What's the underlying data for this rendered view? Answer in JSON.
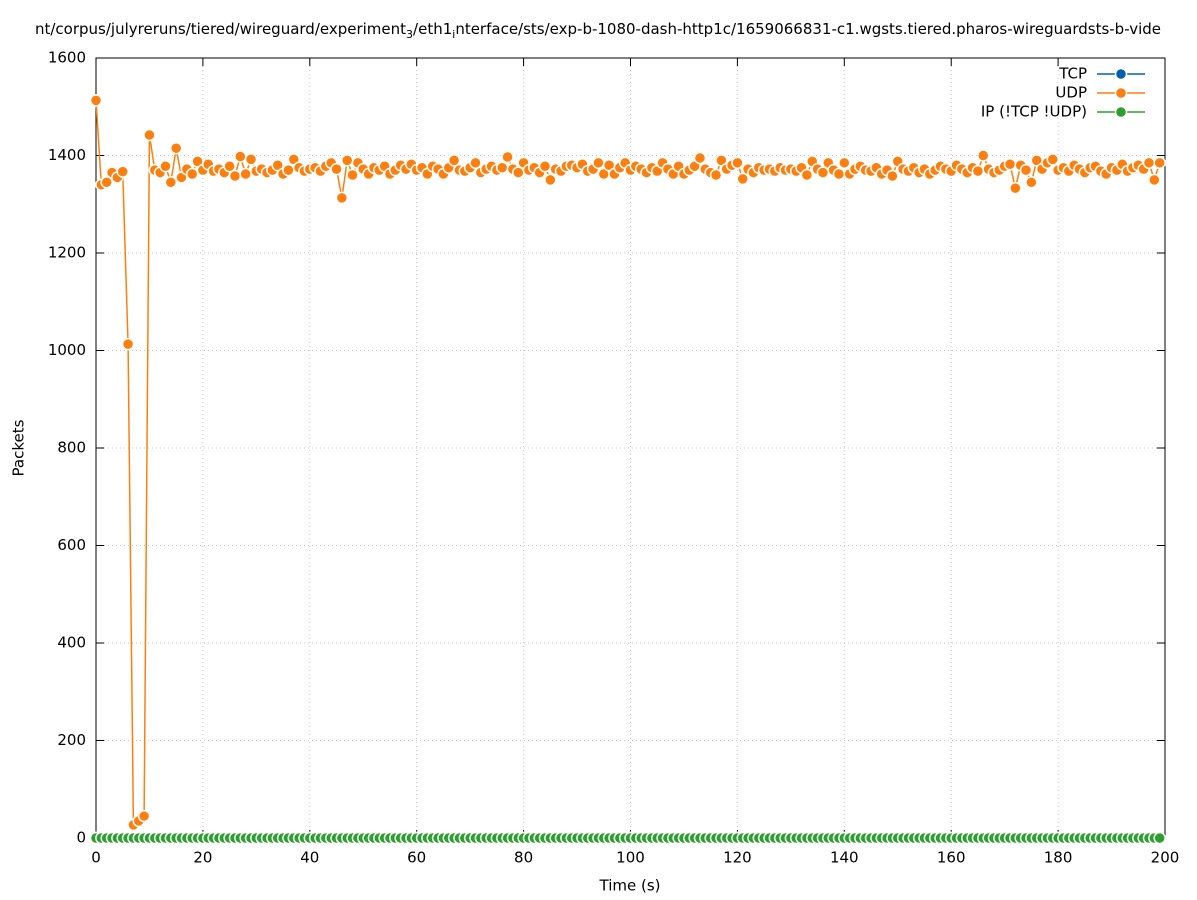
{
  "chart_data": {
    "type": "line",
    "title": [
      "nt/corpus/julyreruns/tiered/wireguard/experiment",
      "3",
      "/eth1",
      "i",
      "nterface/sts/exp-b-1080-dash-http1c/1659066831-c1.wgsts.tiered.pharos-wireguardsts-b-vide"
    ],
    "xlabel": "Time (s)",
    "ylabel": "Packets",
    "xlim": [
      0,
      200
    ],
    "ylim": [
      0,
      1600
    ],
    "xticks": [
      0,
      20,
      40,
      60,
      80,
      100,
      120,
      140,
      160,
      180,
      200
    ],
    "yticks": [
      0,
      200,
      400,
      600,
      800,
      1000,
      1200,
      1400,
      1600
    ],
    "grid": true,
    "legend": "top-right",
    "x": [
      0,
      1,
      2,
      3,
      4,
      5,
      6,
      7,
      8,
      9,
      10,
      11,
      12,
      13,
      14,
      15,
      16,
      17,
      18,
      19,
      20,
      21,
      22,
      23,
      24,
      25,
      26,
      27,
      28,
      29,
      30,
      31,
      32,
      33,
      34,
      35,
      36,
      37,
      38,
      39,
      40,
      41,
      42,
      43,
      44,
      45,
      46,
      47,
      48,
      49,
      50,
      51,
      52,
      53,
      54,
      55,
      56,
      57,
      58,
      59,
      60,
      61,
      62,
      63,
      64,
      65,
      66,
      67,
      68,
      69,
      70,
      71,
      72,
      73,
      74,
      75,
      76,
      77,
      78,
      79,
      80,
      81,
      82,
      83,
      84,
      85,
      86,
      87,
      88,
      89,
      90,
      91,
      92,
      93,
      94,
      95,
      96,
      97,
      98,
      99,
      100,
      101,
      102,
      103,
      104,
      105,
      106,
      107,
      108,
      109,
      110,
      111,
      112,
      113,
      114,
      115,
      116,
      117,
      118,
      119,
      120,
      121,
      122,
      123,
      124,
      125,
      126,
      127,
      128,
      129,
      130,
      131,
      132,
      133,
      134,
      135,
      136,
      137,
      138,
      139,
      140,
      141,
      142,
      143,
      144,
      145,
      146,
      147,
      148,
      149,
      150,
      151,
      152,
      153,
      154,
      155,
      156,
      157,
      158,
      159,
      160,
      161,
      162,
      163,
      164,
      165,
      166,
      167,
      168,
      169,
      170,
      171,
      172,
      173,
      174,
      175,
      176,
      177,
      178,
      179,
      180,
      181,
      182,
      183,
      184,
      185,
      186,
      187,
      188,
      189,
      190,
      191,
      192,
      193,
      194,
      195,
      196,
      197,
      198,
      199
    ],
    "series": [
      {
        "name": "TCP",
        "color": "#0060ad",
        "values": [
          0,
          0,
          0,
          0,
          0,
          0,
          0,
          0,
          0,
          0,
          0,
          0,
          0,
          0,
          0,
          0,
          0,
          0,
          0,
          0,
          0,
          0,
          0,
          0,
          0,
          0,
          0,
          0,
          0,
          0,
          0,
          0,
          0,
          0,
          0,
          0,
          0,
          0,
          0,
          0,
          0,
          0,
          0,
          0,
          0,
          0,
          0,
          0,
          0,
          0,
          0,
          0,
          0,
          0,
          0,
          0,
          0,
          0,
          0,
          0,
          0,
          0,
          0,
          0,
          0,
          0,
          0,
          0,
          0,
          0,
          0,
          0,
          0,
          0,
          0,
          0,
          0,
          0,
          0,
          0,
          0,
          0,
          0,
          0,
          0,
          0,
          0,
          0,
          0,
          0,
          0,
          0,
          0,
          0,
          0,
          0,
          0,
          0,
          0,
          0,
          0,
          0,
          0,
          0,
          0,
          0,
          0,
          0,
          0,
          0,
          0,
          0,
          0,
          0,
          0,
          0,
          0,
          0,
          0,
          0,
          0,
          0,
          0,
          0,
          0,
          0,
          0,
          0,
          0,
          0,
          0,
          0,
          0,
          0,
          0,
          0,
          0,
          0,
          0,
          0,
          0,
          0,
          0,
          0,
          0,
          0,
          0,
          0,
          0,
          0,
          0,
          0,
          0,
          0,
          0,
          0,
          0,
          0,
          0,
          0,
          0,
          0,
          0,
          0,
          0,
          0,
          0,
          0,
          0,
          0,
          0,
          0,
          0,
          0,
          0,
          0,
          0,
          0,
          0,
          0,
          0,
          0,
          0,
          0,
          0,
          0,
          0,
          0,
          0,
          0,
          0,
          0,
          0,
          0,
          0,
          0,
          0,
          0,
          0,
          0
        ]
      },
      {
        "name": "UDP",
        "color": "#ff7f0e",
        "values": [
          1513,
          1340,
          1345,
          1365,
          1355,
          1367,
          1013,
          27,
          35,
          45,
          1442,
          1370,
          1365,
          1378,
          1345,
          1415,
          1355,
          1372,
          1362,
          1388,
          1370,
          1382,
          1368,
          1372,
          1365,
          1378,
          1358,
          1398,
          1362,
          1392,
          1368,
          1372,
          1365,
          1370,
          1380,
          1362,
          1370,
          1392,
          1375,
          1368,
          1372,
          1375,
          1368,
          1378,
          1385,
          1372,
          1313,
          1390,
          1360,
          1385,
          1372,
          1362,
          1375,
          1370,
          1378,
          1362,
          1370,
          1380,
          1372,
          1382,
          1370,
          1375,
          1362,
          1378,
          1372,
          1362,
          1375,
          1390,
          1370,
          1368,
          1375,
          1385,
          1365,
          1372,
          1378,
          1370,
          1375,
          1397,
          1372,
          1365,
          1385,
          1370,
          1375,
          1365,
          1378,
          1350,
          1372,
          1368,
          1378,
          1380,
          1375,
          1382,
          1368,
          1372,
          1385,
          1362,
          1380,
          1362,
          1375,
          1385,
          1370,
          1378,
          1372,
          1365,
          1375,
          1368,
          1385,
          1372,
          1362,
          1378,
          1362,
          1370,
          1378,
          1395,
          1372,
          1365,
          1360,
          1390,
          1372,
          1380,
          1385,
          1352,
          1372,
          1365,
          1375,
          1370,
          1372,
          1368,
          1375,
          1370,
          1372,
          1368,
          1375,
          1360,
          1388,
          1372,
          1365,
          1385,
          1370,
          1362,
          1385,
          1362,
          1372,
          1378,
          1370,
          1368,
          1375,
          1362,
          1370,
          1358,
          1388,
          1372,
          1368,
          1375,
          1365,
          1372,
          1362,
          1370,
          1378,
          1372,
          1368,
          1380,
          1372,
          1365,
          1375,
          1368,
          1400,
          1372,
          1365,
          1370,
          1378,
          1382,
          1333,
          1380,
          1370,
          1345,
          1390,
          1372,
          1385,
          1392,
          1370,
          1375,
          1368,
          1380,
          1372,
          1365,
          1375,
          1378,
          1368,
          1362,
          1375,
          1370,
          1382,
          1368,
          1375,
          1380,
          1372,
          1385,
          1350,
          1385
        ]
      },
      {
        "name": "IP (!TCP  !UDP)",
        "color": "#2ca02c",
        "values": [
          0,
          0,
          0,
          0,
          0,
          0,
          0,
          0,
          0,
          0,
          0,
          0,
          0,
          0,
          0,
          0,
          0,
          0,
          0,
          0,
          0,
          0,
          0,
          0,
          0,
          0,
          0,
          0,
          0,
          0,
          0,
          0,
          0,
          0,
          0,
          0,
          0,
          0,
          0,
          0,
          0,
          0,
          0,
          0,
          0,
          0,
          0,
          0,
          0,
          0,
          0,
          0,
          0,
          0,
          0,
          0,
          0,
          0,
          0,
          0,
          0,
          0,
          0,
          0,
          0,
          0,
          0,
          0,
          0,
          0,
          0,
          0,
          0,
          0,
          0,
          0,
          0,
          0,
          0,
          0,
          0,
          0,
          0,
          0,
          0,
          0,
          0,
          0,
          0,
          0,
          0,
          0,
          0,
          0,
          0,
          0,
          0,
          0,
          0,
          0,
          0,
          0,
          0,
          0,
          0,
          0,
          0,
          0,
          0,
          0,
          0,
          0,
          0,
          0,
          0,
          0,
          0,
          0,
          0,
          0,
          0,
          0,
          0,
          0,
          0,
          0,
          0,
          0,
          0,
          0,
          0,
          0,
          0,
          0,
          0,
          0,
          0,
          0,
          0,
          0,
          0,
          0,
          0,
          0,
          0,
          0,
          0,
          0,
          0,
          0,
          0,
          0,
          0,
          0,
          0,
          0,
          0,
          0,
          0,
          0,
          0,
          0,
          0,
          0,
          0,
          0,
          0,
          0,
          0,
          0,
          0,
          0,
          0,
          0,
          0,
          0,
          0,
          0,
          0,
          0,
          0,
          0,
          0,
          0,
          0,
          0,
          0,
          0,
          0,
          0,
          0,
          0,
          0,
          0,
          0,
          0,
          0,
          0,
          0,
          0
        ]
      }
    ]
  }
}
